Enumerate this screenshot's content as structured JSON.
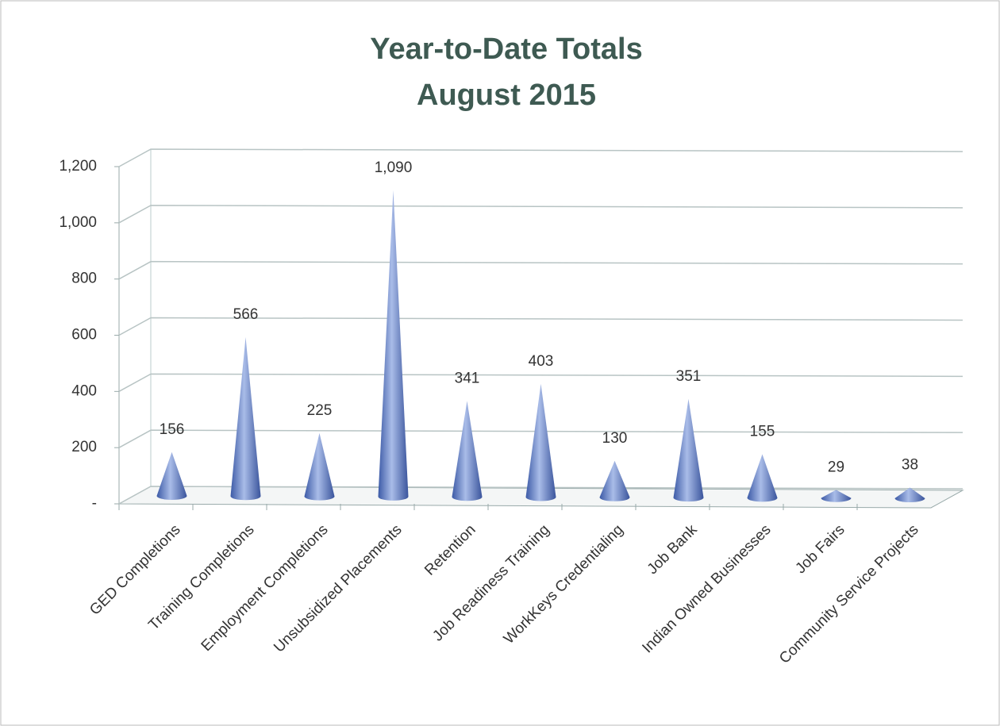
{
  "chart_data": {
    "type": "cone",
    "title": "Year-to-Date Totals",
    "subtitle": "August 2015",
    "categories": [
      "GED Completions",
      "Training Completions",
      "Employment Completions",
      "Unsubsidized Placements",
      "Retention",
      "Job Readiness Training",
      "WorkKeys Credentialing",
      "Job Bank",
      "Indian Owned Businesses",
      "Job Fairs",
      "Community Service Projects"
    ],
    "values": [
      156,
      566,
      225,
      1090,
      341,
      403,
      130,
      351,
      155,
      29,
      38
    ],
    "value_labels": [
      "156",
      "566",
      "225",
      "1,090",
      "341",
      "403",
      "130",
      "351",
      "155",
      "29",
      "38"
    ],
    "color": "#5270bd",
    "ylim": [
      0,
      1200
    ],
    "yticks": [
      {
        "value": 0,
        "label": "-"
      },
      200,
      400,
      600,
      800,
      {
        "value": 1000,
        "label": "1,000"
      },
      {
        "value": 1200,
        "label": "1,200"
      }
    ],
    "grid": true
  }
}
